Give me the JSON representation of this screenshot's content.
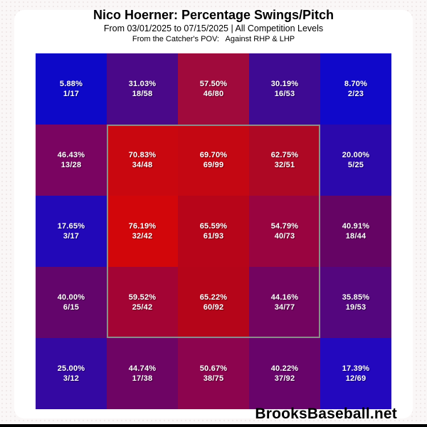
{
  "header": {
    "title": "Nico Hoerner: Percentage Swings/Pitch",
    "subtitle": "From 03/01/2025 to 07/15/2025 | All Competition Levels",
    "pov_note": "From the Catcher's POV:   Against RHP & LHP"
  },
  "footer": {
    "brand": "BrooksBaseball.net"
  },
  "colors": {
    "background": "#faf7f7",
    "card": "#ffffff",
    "cell_text": "#ffffff",
    "strike_zone_border": "#8c8c8c",
    "bottom_bar": "#000000"
  },
  "chart_data": {
    "type": "heatmap",
    "title": "Nico Hoerner: Percentage Swings/Pitch",
    "subtitle": "From 03/01/2025 to 07/15/2025 | All Competition Levels",
    "annotation": "From the Catcher's POV:   Against RHP & LHP",
    "rows": 5,
    "cols": 5,
    "legend_position": "none",
    "grid": "off",
    "strike_zone": {
      "row_start": 1,
      "col_start": 1,
      "row_span": 3,
      "col_span": 3,
      "border_color": "#8c8c8c"
    },
    "cells": [
      [
        {
          "pct": "5.88%",
          "fraction": "1/17",
          "value": 5.88,
          "swings": 1,
          "pitches": 17,
          "color": "#0d08c8"
        },
        {
          "pct": "31.03%",
          "fraction": "18/58",
          "value": 31.03,
          "swings": 18,
          "pitches": 58,
          "color": "#4a0889"
        },
        {
          "pct": "57.50%",
          "fraction": "46/80",
          "value": 57.5,
          "swings": 46,
          "pitches": 80,
          "color": "#a00a3c"
        },
        {
          "pct": "30.19%",
          "fraction": "16/53",
          "value": 30.19,
          "swings": 16,
          "pitches": 53,
          "color": "#3e0a93"
        },
        {
          "pct": "8.70%",
          "fraction": "2/23",
          "value": 8.7,
          "swings": 2,
          "pitches": 23,
          "color": "#1008ca"
        }
      ],
      [
        {
          "pct": "46.43%",
          "fraction": "13/28",
          "value": 46.43,
          "swings": 13,
          "pitches": 28,
          "color": "#7a0461"
        },
        {
          "pct": "70.83%",
          "fraction": "34/48",
          "value": 70.83,
          "swings": 34,
          "pitches": 48,
          "color": "#c9070f"
        },
        {
          "pct": "69.70%",
          "fraction": "69/99",
          "value": 69.7,
          "swings": 69,
          "pitches": 99,
          "color": "#c40712"
        },
        {
          "pct": "62.75%",
          "fraction": "32/51",
          "value": 62.75,
          "swings": 32,
          "pitches": 51,
          "color": "#ae0824"
        },
        {
          "pct": "20.00%",
          "fraction": "5/25",
          "value": 20.0,
          "swings": 5,
          "pitches": 25,
          "color": "#2b08ac"
        }
      ],
      [
        {
          "pct": "17.65%",
          "fraction": "3/17",
          "value": 17.65,
          "swings": 3,
          "pitches": 17,
          "color": "#2208b8"
        },
        {
          "pct": "76.19%",
          "fraction": "32/42",
          "value": 76.19,
          "swings": 32,
          "pitches": 42,
          "color": "#d2060a"
        },
        {
          "pct": "65.59%",
          "fraction": "61/93",
          "value": 65.59,
          "swings": 61,
          "pitches": 93,
          "color": "#b70519"
        },
        {
          "pct": "54.79%",
          "fraction": "40/73",
          "value": 54.79,
          "swings": 40,
          "pitches": 73,
          "color": "#990440"
        },
        {
          "pct": "40.91%",
          "fraction": "18/44",
          "value": 40.91,
          "swings": 18,
          "pitches": 44,
          "color": "#650464"
        }
      ],
      [
        {
          "pct": "40.00%",
          "fraction": "6/15",
          "value": 40.0,
          "swings": 6,
          "pitches": 15,
          "color": "#63056b"
        },
        {
          "pct": "59.52%",
          "fraction": "25/42",
          "value": 59.52,
          "swings": 25,
          "pitches": 42,
          "color": "#a30434"
        },
        {
          "pct": "65.22%",
          "fraction": "60/92",
          "value": 65.22,
          "swings": 60,
          "pitches": 92,
          "color": "#b50519"
        },
        {
          "pct": "44.16%",
          "fraction": "34/77",
          "value": 44.16,
          "swings": 34,
          "pitches": 77,
          "color": "#730460"
        },
        {
          "pct": "35.85%",
          "fraction": "19/53",
          "value": 35.85,
          "swings": 19,
          "pitches": 53,
          "color": "#54067e"
        }
      ],
      [
        {
          "pct": "25.00%",
          "fraction": "3/12",
          "value": 25.0,
          "swings": 3,
          "pitches": 12,
          "color": "#3408a2"
        },
        {
          "pct": "44.74%",
          "fraction": "17/38",
          "value": 44.74,
          "swings": 17,
          "pitches": 38,
          "color": "#6e0464"
        },
        {
          "pct": "50.67%",
          "fraction": "38/75",
          "value": 50.67,
          "swings": 38,
          "pitches": 75,
          "color": "#8c044e"
        },
        {
          "pct": "40.22%",
          "fraction": "37/92",
          "value": 40.22,
          "swings": 37,
          "pitches": 92,
          "color": "#68046a"
        },
        {
          "pct": "17.39%",
          "fraction": "12/69",
          "value": 17.39,
          "swings": 12,
          "pitches": 69,
          "color": "#2308be"
        }
      ]
    ]
  }
}
